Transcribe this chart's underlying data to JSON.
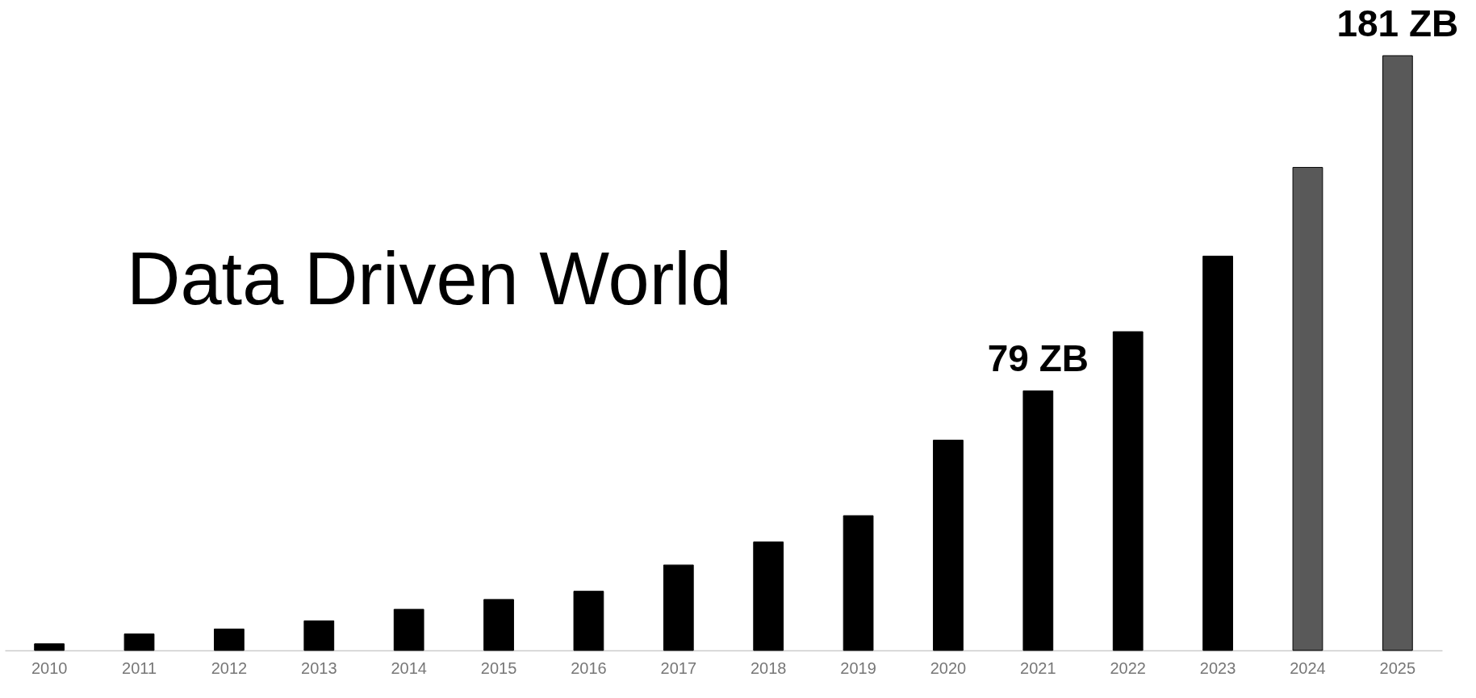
{
  "chart_data": {
    "type": "bar",
    "title": "Data Driven World",
    "categories": [
      "2010",
      "2011",
      "2012",
      "2013",
      "2014",
      "2015",
      "2016",
      "2017",
      "2018",
      "2019",
      "2020",
      "2021",
      "2022",
      "2023",
      "2024",
      "2025"
    ],
    "values": [
      2,
      5,
      6.5,
      9,
      12.5,
      15.5,
      18,
      26,
      33,
      41,
      64,
      79,
      97,
      120,
      147,
      181
    ],
    "colors": [
      "#000000",
      "#000000",
      "#000000",
      "#000000",
      "#000000",
      "#000000",
      "#000000",
      "#000000",
      "#000000",
      "#000000",
      "#000000",
      "#000000",
      "#000000",
      "#000000",
      "#595959",
      "#595959"
    ],
    "value_labels": [
      null,
      null,
      null,
      null,
      null,
      null,
      null,
      null,
      null,
      null,
      null,
      "79 ZB",
      null,
      null,
      null,
      "181 ZB"
    ]
  }
}
